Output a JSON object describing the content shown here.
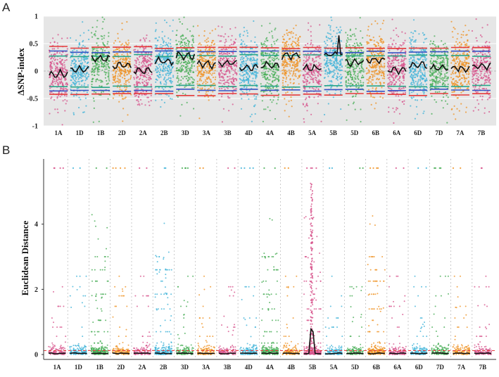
{
  "chart_data": [
    {
      "panel_label": "A",
      "type": "scatter",
      "ylabel": "ΔSNP-index",
      "ylim": [
        -1,
        1
      ],
      "yticks": [
        1,
        0.5,
        0,
        -0.5,
        -1
      ],
      "ytick_labels": [
        "1",
        "0.5",
        "0",
        "-0.5",
        "-1"
      ],
      "background": "#e6e6e6",
      "grid": true,
      "chromosomes": [
        "1A",
        "1D",
        "1B",
        "2D",
        "2A",
        "2B",
        "3D",
        "3A",
        "3B",
        "4D",
        "4A",
        "4B",
        "5A",
        "5B",
        "5D",
        "6B",
        "6A",
        "6D",
        "7D",
        "7A",
        "7B"
      ],
      "colors": [
        "#d7548c",
        "#3fb3d8",
        "#47ad55",
        "#ef9223"
      ],
      "threshold_lines": [
        {
          "name": "upper-99",
          "value": 0.43,
          "color": "#e53a3a"
        },
        {
          "name": "upper-95",
          "value": 0.35,
          "color": "#3552c4"
        },
        {
          "name": "upper-90",
          "value": 0.28,
          "color": "#2aa68a"
        },
        {
          "name": "lower-90",
          "value": -0.28,
          "color": "#2aa68a"
        },
        {
          "name": "lower-95",
          "value": -0.35,
          "color": "#3552c4"
        },
        {
          "name": "lower-99",
          "value": -0.43,
          "color": "#e53a3a"
        }
      ],
      "fitted_line_means": [
        -0.05,
        0.02,
        0.22,
        0.1,
        0.02,
        0.18,
        0.28,
        0.12,
        0.15,
        0.06,
        0.1,
        0.28,
        0.05,
        0.3,
        0.15,
        0.2,
        0.02,
        0.1,
        0.06,
        0.05,
        0.08
      ]
    },
    {
      "panel_label": "B",
      "type": "scatter",
      "ylabel": "Euclidean Distance",
      "ylim": [
        -0.15,
        6
      ],
      "yticks": [
        0,
        2,
        4
      ],
      "ytick_labels": [
        "0",
        "2",
        "4"
      ],
      "background": "#ffffff",
      "grid": false,
      "chromosomes": [
        "1A",
        "1D",
        "1B",
        "2D",
        "2A",
        "2B",
        "3D",
        "3A",
        "3B",
        "4D",
        "4A",
        "4B",
        "5B",
        "5A",
        "5D",
        "6B",
        "6A",
        "6D",
        "7D",
        "7A",
        "7B"
      ],
      "colors": [
        "#d7548c",
        "#3fb3d8",
        "#47ad55",
        "#ef9223"
      ],
      "threshold_line": {
        "value": 0.12,
        "color": "#e53a3a"
      },
      "peak": {
        "chromosome": "5B",
        "fitted_max": 0.78,
        "point_max": 5.3
      },
      "high_density": [
        "1B",
        "2B",
        "4A",
        "5B",
        "6B"
      ]
    }
  ]
}
